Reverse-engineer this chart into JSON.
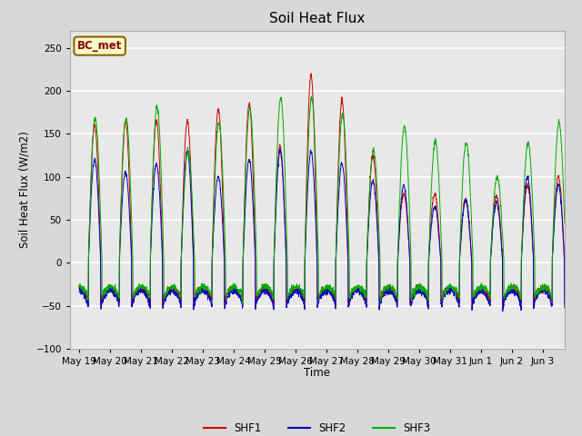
{
  "title": "Soil Heat Flux",
  "ylabel": "Soil Heat Flux (W/m2)",
  "xlabel": "Time",
  "ylim": [
    -100,
    270
  ],
  "yticks": [
    -100,
    -50,
    0,
    50,
    100,
    150,
    200,
    250
  ],
  "fig_bg_color": "#d8d8d8",
  "plot_bg_color": "#e8e8e8",
  "shf1_color": "#cc0000",
  "shf2_color": "#0000bb",
  "shf3_color": "#00aa00",
  "legend_label": "BC_met",
  "series_labels": [
    "SHF1",
    "SHF2",
    "SHF3"
  ],
  "x_tick_labels": [
    "May 19",
    "May 20",
    "May 21",
    "May 22",
    "May 23",
    "May 24",
    "May 25",
    "May 26",
    "May 27",
    "May 28",
    "May 29",
    "May 30",
    "May 31",
    "Jun 1",
    "Jun 2",
    "Jun 3"
  ],
  "num_days": 16,
  "points_per_day": 144,
  "shf1_day_amps": [
    160,
    165,
    165,
    165,
    178,
    185,
    135,
    218,
    188,
    125,
    80,
    80,
    75,
    78,
    90,
    100
  ],
  "shf2_day_amps": [
    120,
    105,
    115,
    130,
    100,
    120,
    130,
    130,
    115,
    95,
    90,
    65,
    72,
    70,
    100,
    90
  ],
  "shf3_day_amps": [
    168,
    168,
    182,
    130,
    163,
    180,
    192,
    192,
    173,
    130,
    158,
    140,
    140,
    100,
    140,
    163
  ]
}
